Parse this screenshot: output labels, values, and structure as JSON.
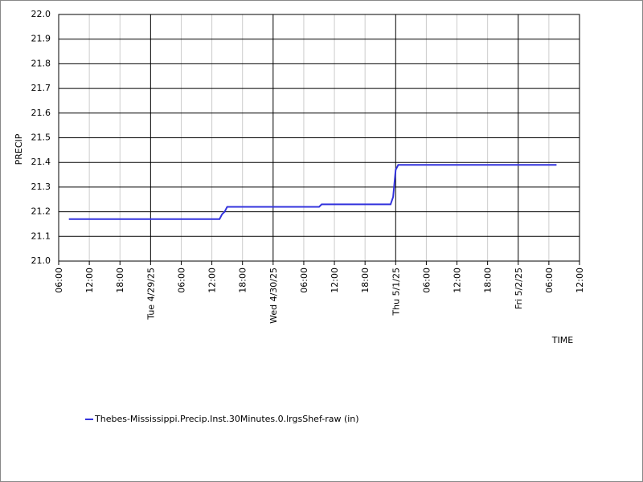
{
  "chart_data": {
    "type": "line",
    "x_label": "TIME",
    "y_label": "PRECIP",
    "x": [
      "2025-04-28T08:00",
      "2025-04-29T13:30",
      "2025-04-29T14:00",
      "2025-04-29T14:30",
      "2025-04-29T15:00",
      "2025-04-30T09:00",
      "2025-04-30T09:30",
      "2025-04-30T23:00",
      "2025-04-30T23:30",
      "2025-05-01T00:00",
      "2025-05-01T00:30",
      "2025-05-02T07:30"
    ],
    "series": [
      {
        "name": "Thebes-Mississippi.Precip.Inst.30Minutes.0.lrgsShef-raw (in)",
        "color": "#3333dd",
        "values": [
          21.17,
          21.17,
          21.19,
          21.2,
          21.22,
          21.22,
          21.23,
          21.23,
          21.26,
          21.37,
          21.39,
          21.39
        ]
      }
    ],
    "xlim": [
      "2025-04-28T06:00",
      "2025-05-02T12:00"
    ],
    "xticks": [
      {
        "value": "2025-04-28T06:00",
        "label": "06:00"
      },
      {
        "value": "2025-04-28T12:00",
        "label": "12:00"
      },
      {
        "value": "2025-04-28T18:00",
        "label": "18:00"
      },
      {
        "value": "2025-04-29T00:00",
        "label": "Tue 4/29/25"
      },
      {
        "value": "2025-04-29T06:00",
        "label": "06:00"
      },
      {
        "value": "2025-04-29T12:00",
        "label": "12:00"
      },
      {
        "value": "2025-04-29T18:00",
        "label": "18:00"
      },
      {
        "value": "2025-04-30T00:00",
        "label": "Wed 4/30/25"
      },
      {
        "value": "2025-04-30T06:00",
        "label": "06:00"
      },
      {
        "value": "2025-04-30T12:00",
        "label": "12:00"
      },
      {
        "value": "2025-04-30T18:00",
        "label": "18:00"
      },
      {
        "value": "2025-05-01T00:00",
        "label": "Thu 5/1/25"
      },
      {
        "value": "2025-05-01T06:00",
        "label": "06:00"
      },
      {
        "value": "2025-05-01T12:00",
        "label": "12:00"
      },
      {
        "value": "2025-05-01T18:00",
        "label": "18:00"
      },
      {
        "value": "2025-05-02T00:00",
        "label": "Fri 5/2/25"
      },
      {
        "value": "2025-05-02T06:00",
        "label": "06:00"
      },
      {
        "value": "2025-05-02T12:00",
        "label": "12:00"
      }
    ],
    "ylim": [
      21.0,
      22.0
    ],
    "yticks": [
      {
        "value": 21.0,
        "label": "21.0"
      },
      21.1,
      21.2,
      21.3,
      21.4,
      21.5,
      21.6,
      21.7,
      21.8,
      21.9,
      {
        "value": 22.0,
        "label": "22.0"
      }
    ],
    "grid": true,
    "legend": "bottom"
  }
}
